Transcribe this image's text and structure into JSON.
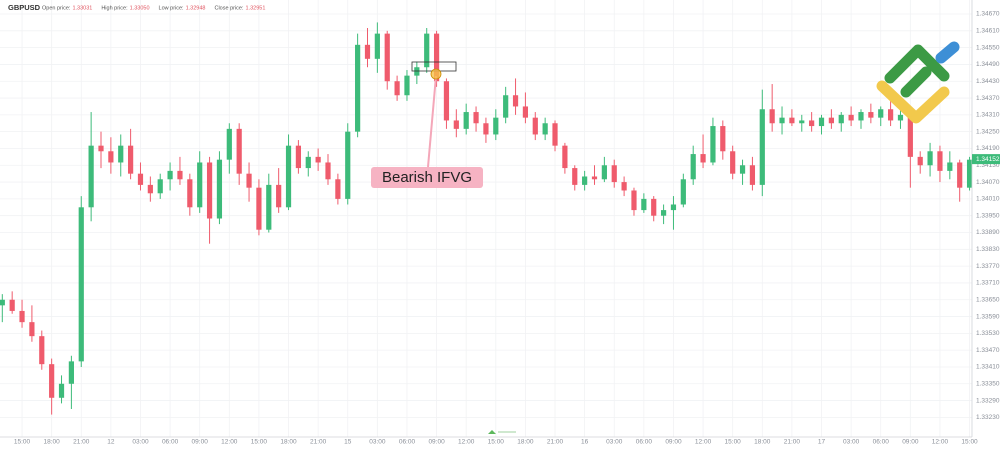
{
  "chart_data": {
    "type": "candlestick",
    "symbol": "GBPUSD",
    "info": [
      {
        "label": "Open price:",
        "value": "1.33031"
      },
      {
        "label": "High price:",
        "value": "1.33050"
      },
      {
        "label": "Low price:",
        "value": "1.32948"
      },
      {
        "label": "Close price:",
        "value": "1.32951"
      }
    ],
    "annotation": "Bearish IFVG",
    "last_price": 1.34152,
    "up_color": "#3dbb7a",
    "down_color": "#ef5b6c",
    "grid": true,
    "categories": [
      null,
      null,
      "15:00",
      null,
      null,
      "18:00",
      null,
      null,
      "21:00",
      null,
      null,
      "12",
      null,
      null,
      "03:00",
      null,
      null,
      "06:00",
      null,
      null,
      "09:00",
      null,
      null,
      "12:00",
      null,
      null,
      "15:00",
      null,
      null,
      "18:00",
      null,
      null,
      "21:00",
      null,
      null,
      "15",
      null,
      null,
      "03:00",
      null,
      null,
      "06:00",
      null,
      null,
      "09:00",
      null,
      null,
      "12:00",
      null,
      null,
      "15:00",
      null,
      null,
      "18:00",
      null,
      null,
      "21:00",
      null,
      null,
      "16",
      null,
      null,
      "03:00",
      null,
      null,
      "06:00",
      null,
      null,
      "09:00",
      null,
      null,
      "12:00",
      null,
      null,
      "15:00",
      null,
      null,
      "18:00",
      null,
      null,
      "21:00",
      null,
      null,
      "17",
      null,
      null,
      "03:00",
      null,
      null,
      "06:00",
      null,
      null,
      "09:00",
      null,
      null,
      "12:00",
      null,
      null,
      "15:00"
    ],
    "open": [
      1.3363,
      1.3365,
      1.3361,
      1.3357,
      1.3352,
      1.3342,
      1.333,
      1.3335,
      1.3343,
      1.3398,
      1.342,
      1.3418,
      1.3414,
      1.342,
      1.341,
      1.3406,
      1.3403,
      1.3408,
      1.3411,
      1.3408,
      1.3398,
      1.3414,
      1.3394,
      1.3415,
      1.3426,
      1.341,
      1.3405,
      1.339,
      1.3406,
      1.3398,
      1.342,
      1.3412,
      1.3416,
      1.3414,
      1.3408,
      1.3401,
      1.3425,
      1.3456,
      1.3451,
      1.346,
      1.3443,
      1.3438,
      1.3445,
      1.3448,
      1.346,
      1.3443,
      1.3429,
      1.3426,
      1.3432,
      1.3428,
      1.3424,
      1.343,
      1.3438,
      1.3434,
      1.343,
      1.3424,
      1.3428,
      1.342,
      1.3412,
      1.3406,
      1.3409,
      1.3408,
      1.3413,
      1.3407,
      1.3404,
      1.3397,
      1.3401,
      1.3395,
      1.3397,
      1.3399,
      1.3408,
      1.3417,
      1.3414,
      1.3427,
      1.3418,
      1.341,
      1.3413,
      1.3406,
      1.3433,
      1.3428,
      1.343,
      1.3428,
      1.3429,
      1.3427,
      1.343,
      1.3428,
      1.3431,
      1.3429,
      1.3432,
      1.343,
      1.3433,
      1.3429,
      1.3431,
      1.3416,
      1.3413,
      1.3418,
      1.3411,
      1.3414,
      1.3405
    ],
    "high": [
      1.3367,
      1.3368,
      1.3365,
      1.3363,
      1.3354,
      1.3344,
      1.3338,
      1.3345,
      1.3402,
      1.3432,
      1.3425,
      1.3423,
      1.3424,
      1.3426,
      1.3414,
      1.3409,
      1.341,
      1.3414,
      1.3416,
      1.341,
      1.3418,
      1.3416,
      1.3418,
      1.3428,
      1.3428,
      1.3414,
      1.3408,
      1.341,
      1.3412,
      1.3424,
      1.3422,
      1.3418,
      1.3419,
      1.3417,
      1.341,
      1.3428,
      1.346,
      1.3462,
      1.3464,
      1.3461,
      1.3445,
      1.3447,
      1.345,
      1.3462,
      1.3461,
      1.3444,
      1.3433,
      1.3435,
      1.3434,
      1.343,
      1.3433,
      1.3441,
      1.3444,
      1.3439,
      1.3432,
      1.343,
      1.3429,
      1.3421,
      1.3413,
      1.3411,
      1.3413,
      1.3416,
      1.3415,
      1.3409,
      1.3405,
      1.3403,
      1.3402,
      1.3399,
      1.3402,
      1.341,
      1.342,
      1.3424,
      1.343,
      1.3429,
      1.342,
      1.3415,
      1.3416,
      1.344,
      1.3442,
      1.3434,
      1.3433,
      1.3431,
      1.3432,
      1.3431,
      1.3433,
      1.3432,
      1.3434,
      1.3433,
      1.3435,
      1.3434,
      1.3436,
      1.3434,
      1.3432,
      1.3418,
      1.3421,
      1.342,
      1.3418,
      1.3415,
      1.3416
    ],
    "low": [
      1.3357,
      1.336,
      1.3355,
      1.335,
      1.334,
      1.3324,
      1.3328,
      1.3326,
      1.3341,
      1.3393,
      1.3412,
      1.341,
      1.3409,
      1.3408,
      1.3404,
      1.34,
      1.3401,
      1.3404,
      1.3406,
      1.3395,
      1.3396,
      1.3385,
      1.3392,
      1.341,
      1.3406,
      1.34,
      1.3388,
      1.3389,
      1.3396,
      1.3397,
      1.341,
      1.3409,
      1.3411,
      1.3406,
      1.3399,
      1.3399,
      1.3423,
      1.3448,
      1.3446,
      1.344,
      1.3436,
      1.3436,
      1.3442,
      1.3446,
      1.3441,
      1.3426,
      1.3423,
      1.3424,
      1.3425,
      1.3421,
      1.3422,
      1.3428,
      1.3431,
      1.3428,
      1.3422,
      1.3422,
      1.3418,
      1.341,
      1.3404,
      1.3404,
      1.3406,
      1.3407,
      1.3405,
      1.3402,
      1.3395,
      1.3396,
      1.3393,
      1.3392,
      1.339,
      1.3398,
      1.3406,
      1.3412,
      1.3413,
      1.3415,
      1.3408,
      1.3406,
      1.3404,
      1.3402,
      1.3425,
      1.3424,
      1.3427,
      1.3425,
      1.3425,
      1.3424,
      1.3426,
      1.3425,
      1.3427,
      1.3426,
      1.3428,
      1.3427,
      1.3427,
      1.3426,
      1.3405,
      1.341,
      1.3409,
      1.3407,
      1.3408,
      1.34,
      1.3404
    ],
    "close": [
      1.3365,
      1.3361,
      1.3357,
      1.3352,
      1.3342,
      1.333,
      1.3335,
      1.3343,
      1.3398,
      1.342,
      1.3418,
      1.3414,
      1.342,
      1.341,
      1.3406,
      1.3403,
      1.3408,
      1.3411,
      1.3408,
      1.3398,
      1.3414,
      1.3394,
      1.3415,
      1.3426,
      1.341,
      1.3405,
      1.339,
      1.3406,
      1.3398,
      1.342,
      1.3412,
      1.3416,
      1.3414,
      1.3408,
      1.3401,
      1.3425,
      1.3456,
      1.3451,
      1.346,
      1.3443,
      1.3438,
      1.3445,
      1.3448,
      1.346,
      1.3443,
      1.3429,
      1.3426,
      1.3432,
      1.3428,
      1.3424,
      1.343,
      1.3438,
      1.3434,
      1.343,
      1.3424,
      1.3428,
      1.342,
      1.3412,
      1.3406,
      1.3409,
      1.3408,
      1.3413,
      1.3407,
      1.3404,
      1.3397,
      1.3401,
      1.3395,
      1.3397,
      1.3399,
      1.3408,
      1.3417,
      1.3414,
      1.3427,
      1.3418,
      1.341,
      1.3413,
      1.3406,
      1.3433,
      1.3428,
      1.343,
      1.3428,
      1.3429,
      1.3427,
      1.343,
      1.3428,
      1.3431,
      1.3429,
      1.3432,
      1.343,
      1.3433,
      1.3429,
      1.3431,
      1.3416,
      1.3413,
      1.3418,
      1.3411,
      1.3414,
      1.3405,
      1.3415
    ],
    "ylim": [
      1.3316,
      1.3472
    ],
    "yticks": [
      {
        "value": 1.3323,
        "label": "1.33230"
      },
      {
        "value": 1.3329,
        "label": "1.33290"
      },
      {
        "value": 1.3335,
        "label": "1.33350"
      },
      {
        "value": 1.3341,
        "label": "1.33410"
      },
      {
        "value": 1.3347,
        "label": "1.33470"
      },
      {
        "value": 1.3353,
        "label": "1.33530"
      },
      {
        "value": 1.3359,
        "label": "1.33590"
      },
      {
        "value": 1.3365,
        "label": "1.33650"
      },
      {
        "value": 1.3371,
        "label": "1.33710"
      },
      {
        "value": 1.3377,
        "label": "1.33770"
      },
      {
        "value": 1.3383,
        "label": "1.33830"
      },
      {
        "value": 1.3389,
        "label": "1.33890"
      },
      {
        "value": 1.3395,
        "label": "1.33950"
      },
      {
        "value": 1.3401,
        "label": "1.34010"
      },
      {
        "value": 1.3407,
        "label": "1.34070"
      },
      {
        "value": 1.3413,
        "label": "1.34130"
      },
      {
        "value": 1.3419,
        "label": "1.34190"
      },
      {
        "value": 1.3425,
        "label": "1.34250"
      },
      {
        "value": 1.3431,
        "label": "1.34310"
      },
      {
        "value": 1.3437,
        "label": "1.34370"
      },
      {
        "value": 1.3443,
        "label": "1.34430"
      },
      {
        "value": 1.3449,
        "label": "1.34490"
      },
      {
        "value": 1.3455,
        "label": "1.34550"
      },
      {
        "value": 1.3461,
        "label": "1.34610"
      },
      {
        "value": 1.3467,
        "label": "1.34670"
      }
    ]
  }
}
